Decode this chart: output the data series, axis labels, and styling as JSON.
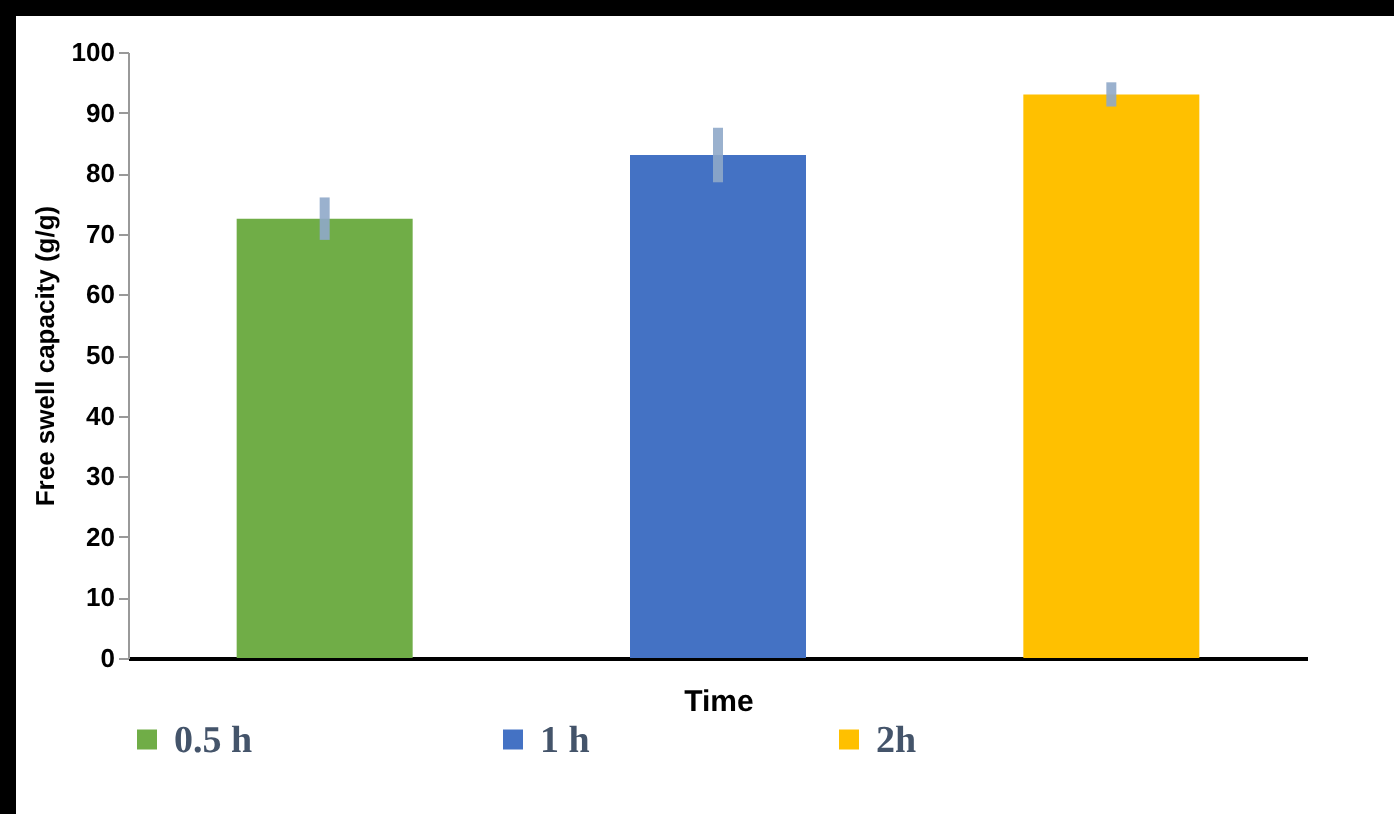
{
  "chart_data": {
    "type": "bar",
    "xlabel": "Time",
    "ylabel": "Free swell capacity (g/g)",
    "categories": [
      null,
      null,
      null
    ],
    "series": [
      {
        "name": "0.5 h",
        "color": "#70ad47",
        "values": [
          72.5,
          null,
          null
        ],
        "errors": [
          3.5,
          null,
          null
        ]
      },
      {
        "name": "1 h",
        "color": "#4472c4",
        "values": [
          null,
          83,
          null
        ],
        "errors": [
          null,
          4.5,
          null
        ]
      },
      {
        "name": "2h",
        "color": "#ffc000",
        "values": [
          null,
          null,
          93
        ],
        "errors": [
          null,
          null,
          2
        ]
      }
    ],
    "ylim": [
      0,
      100
    ],
    "yticks": [
      0,
      10,
      20,
      30,
      40,
      50,
      60,
      70,
      80,
      90,
      100
    ],
    "grid": false,
    "legend": "bottom"
  }
}
